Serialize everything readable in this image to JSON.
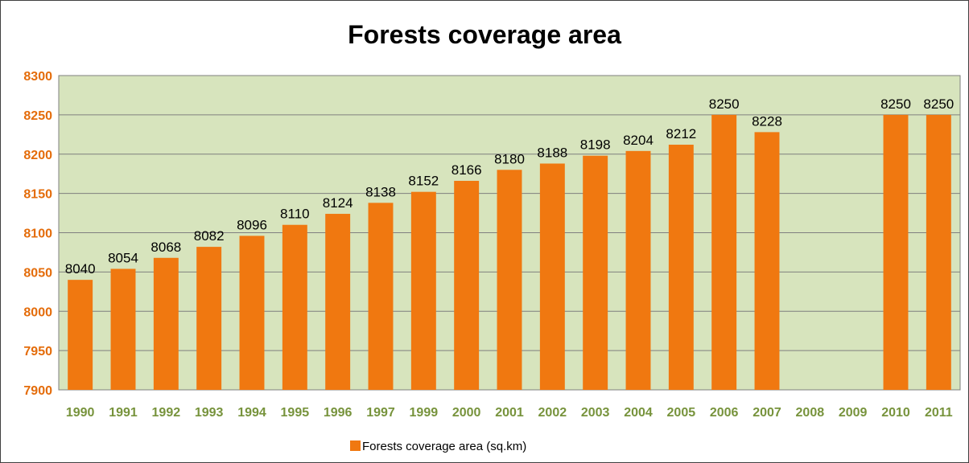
{
  "chart_data": {
    "type": "bar",
    "title": "Forests coverage area",
    "xlabel": "",
    "ylabel": "",
    "ylim": [
      7900,
      8300
    ],
    "yticks": [
      7900,
      7950,
      8000,
      8050,
      8100,
      8150,
      8200,
      8250,
      8300
    ],
    "grid": true,
    "legend_position": "bottom",
    "categories": [
      "1990",
      "1991",
      "1992",
      "1993",
      "1994",
      "1995",
      "1996",
      "1997",
      "1999",
      "2000",
      "2001",
      "2002",
      "2003",
      "2004",
      "2005",
      "2006",
      "2007",
      "2008",
      "2009",
      "2010",
      "2011"
    ],
    "series": [
      {
        "name": "Forests coverage area (sq.km)",
        "values": [
          8040,
          8054,
          8068,
          8082,
          8096,
          8110,
          8124,
          8138,
          8152,
          8166,
          8180,
          8188,
          8198,
          8204,
          8212,
          8250,
          8228,
          null,
          null,
          8250,
          8250
        ]
      }
    ],
    "colors": {
      "bar": "#F07810",
      "plot_background": "#D7E4BD",
      "gridline": "#7F7F7F",
      "ytick_text": "#E46C0A",
      "xtick_text": "#77933C"
    }
  }
}
